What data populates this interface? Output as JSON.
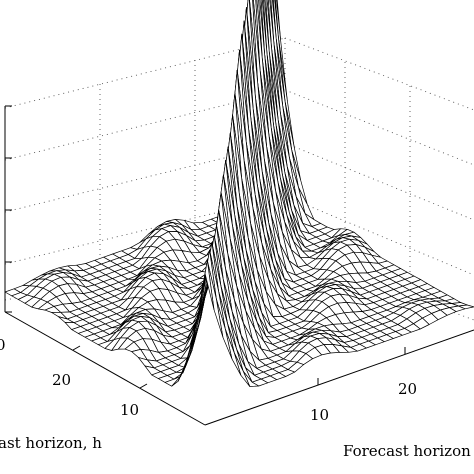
{
  "chart_data": {
    "type": "surface",
    "title": "",
    "xlabel": "Forecast horizon",
    "ylabel": "ast horizon, h",
    "zlabel": "",
    "x_ticks": [
      "10",
      "20"
    ],
    "y_ticks": [
      "20",
      "10"
    ],
    "y_edge_tick": "0",
    "grid": true,
    "mesh_lines": "black",
    "surface_fill": "#ffffff",
    "peak": "sharp peak at the diagonal where both forecast horizons are equal; ridges decay away from it",
    "xlim": [
      0,
      30
    ],
    "ylim": [
      0,
      30
    ]
  }
}
